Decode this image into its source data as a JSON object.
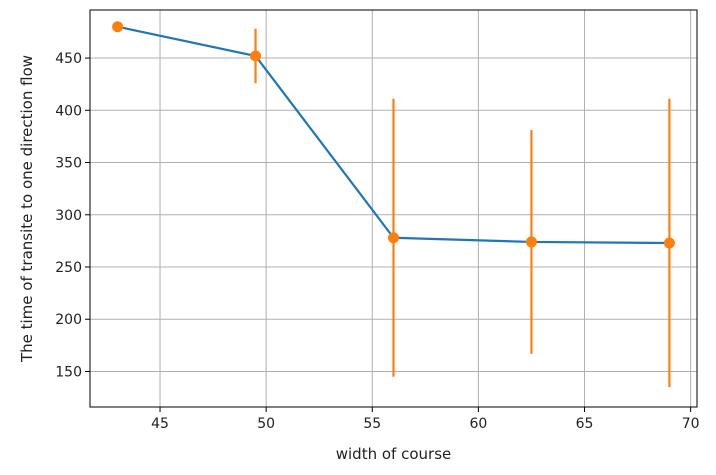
{
  "chart_data": {
    "type": "line",
    "title": "",
    "xlabel": "width of course",
    "ylabel": "The time of transite to one direction flow",
    "xlim": [
      41.7,
      70.3
    ],
    "ylim": [
      116,
      496
    ],
    "xticks": [
      45,
      50,
      55,
      60,
      65,
      70
    ],
    "yticks": [
      150,
      200,
      250,
      300,
      350,
      400,
      450
    ],
    "grid": true,
    "legend": "none",
    "series": [
      {
        "color": "#1f77b4",
        "x": [
          43.0,
          49.5,
          56.0,
          62.5,
          69.0
        ],
        "y": [
          480,
          452,
          278,
          274,
          273
        ]
      }
    ],
    "errorbars": {
      "color": "#ff7f0e",
      "x": [
        43.0,
        49.5,
        56.0,
        62.5,
        69.0
      ],
      "y": [
        480,
        452,
        278,
        274,
        273
      ],
      "yerr": [
        0,
        26,
        133,
        107,
        138
      ]
    },
    "colors": {
      "line": "#1f77b4",
      "points": "#ff7f0e",
      "grid": "#b0b0b0",
      "axes": "#000000"
    }
  }
}
